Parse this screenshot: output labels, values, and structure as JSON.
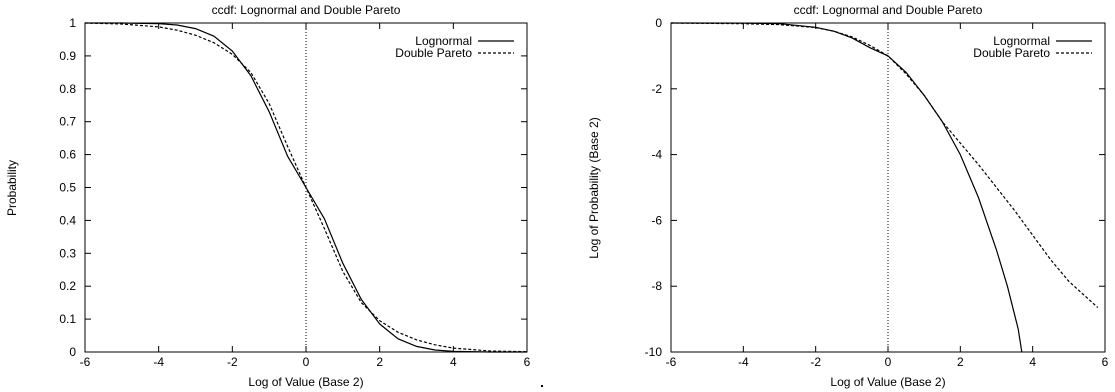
{
  "chart_data": [
    {
      "type": "line",
      "title": "ccdf: Lognormal and Double Pareto",
      "xlabel": "Log of Value (Base 2)",
      "ylabel": "Probability",
      "xlim": [
        -6,
        6
      ],
      "ylim": [
        0,
        1
      ],
      "xticks": [
        "-6",
        "-4",
        "-2",
        "0",
        "2",
        "4",
        "6"
      ],
      "yticks": [
        "0",
        "0.1",
        "0.2",
        "0.3",
        "0.4",
        "0.5",
        "0.6",
        "0.7",
        "0.8",
        "0.9",
        "1"
      ],
      "legend_position": "top-right",
      "vertical_marker_x": 0,
      "series": [
        {
          "name": "Lognormal",
          "style": "solid",
          "x": [
            -6,
            -5,
            -4,
            -3.5,
            -3,
            -2.5,
            -2,
            -1.5,
            -1,
            -0.5,
            0,
            0.5,
            1,
            1.5,
            2,
            2.5,
            3,
            3.5,
            4,
            5,
            6
          ],
          "y": [
            1.0,
            1.0,
            0.998,
            0.994,
            0.983,
            0.96,
            0.915,
            0.84,
            0.73,
            0.595,
            0.5,
            0.405,
            0.27,
            0.16,
            0.085,
            0.04,
            0.017,
            0.006,
            0.002,
            0.0,
            0.0
          ]
        },
        {
          "name": "Double Pareto",
          "style": "dashed",
          "x": [
            -6,
            -5,
            -4,
            -3.5,
            -3,
            -2.5,
            -2,
            -1.5,
            -1,
            -0.5,
            0,
            0.5,
            1,
            1.5,
            2,
            2.5,
            3,
            3.5,
            4,
            5,
            6
          ],
          "y": [
            1.0,
            0.997,
            0.988,
            0.978,
            0.963,
            0.94,
            0.905,
            0.85,
            0.755,
            0.625,
            0.5,
            0.375,
            0.245,
            0.15,
            0.095,
            0.06,
            0.037,
            0.022,
            0.012,
            0.003,
            0.001
          ]
        }
      ]
    },
    {
      "type": "line",
      "title": "ccdf: Lognormal and Double Pareto",
      "xlabel": "Log of Value (Base 2)",
      "ylabel": "Log of Probability (Base 2)",
      "xlim": [
        -6,
        6
      ],
      "ylim": [
        -10,
        0
      ],
      "xticks": [
        "-6",
        "-4",
        "-2",
        "0",
        "2",
        "4",
        "6"
      ],
      "yticks": [
        "-10",
        "-8",
        "-6",
        "-4",
        "-2",
        "0"
      ],
      "legend_position": "top-right",
      "vertical_marker_x": 0,
      "series": [
        {
          "name": "Lognormal",
          "style": "solid",
          "x": [
            -6,
            -4,
            -3,
            -2,
            -1.5,
            -1,
            -0.5,
            0,
            0.5,
            1,
            1.5,
            2,
            2.5,
            3,
            3.3,
            3.6,
            3.7
          ],
          "y": [
            0,
            -0.003,
            -0.02,
            -0.13,
            -0.25,
            -0.45,
            -0.75,
            -1.0,
            -1.5,
            -2.2,
            -3.0,
            -4.0,
            -5.3,
            -6.9,
            -8.0,
            -9.3,
            -10.0
          ]
        },
        {
          "name": "Double Pareto",
          "style": "dashed",
          "x": [
            -6,
            -4,
            -3,
            -2,
            -1.5,
            -1,
            -0.5,
            0,
            0.5,
            1,
            1.5,
            2,
            2.5,
            3,
            3.5,
            4,
            4.5,
            5,
            5.5,
            5.8
          ],
          "y": [
            0,
            -0.02,
            -0.05,
            -0.14,
            -0.25,
            -0.42,
            -0.68,
            -1.0,
            -1.55,
            -2.2,
            -3.0,
            -3.65,
            -4.3,
            -5.0,
            -5.7,
            -6.45,
            -7.2,
            -7.85,
            -8.35,
            -8.65
          ]
        }
      ]
    }
  ]
}
